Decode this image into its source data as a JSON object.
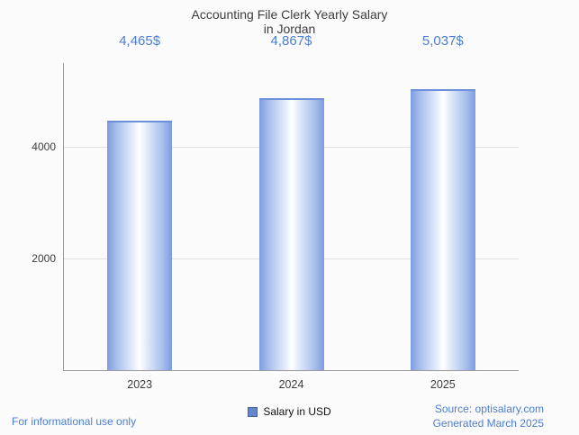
{
  "title": {
    "line1": "Accounting File Clerk Yearly Salary",
    "line2": "in Jordan"
  },
  "chart_data": {
    "type": "bar",
    "title": "Accounting File Clerk Yearly Salary in Jordan",
    "categories": [
      "2023",
      "2024",
      "2025"
    ],
    "values": [
      4465,
      4867,
      5037
    ],
    "value_labels": [
      "4,465$",
      "4,867$",
      "5,037$"
    ],
    "xlabel": "",
    "ylabel": "",
    "ylim": [
      0,
      5500
    ],
    "yticks": [
      2000,
      4000
    ],
    "grid": true,
    "legend": {
      "label": "Salary in USD",
      "position": "bottom"
    },
    "colors": {
      "bar_edge": "#7d9ce2",
      "bar_center": "#ffffff",
      "bar_cap": "#6d8ed9",
      "value_text": "#4d7ed3",
      "gridline": "#e2e2e2"
    }
  },
  "footer": {
    "left_note": "For informational use only",
    "source": "Source: optisalary.com",
    "generated": "Generated March 2025"
  },
  "colors": {
    "accent_text": "#4d7ed3",
    "background": "#fbfbfb"
  }
}
